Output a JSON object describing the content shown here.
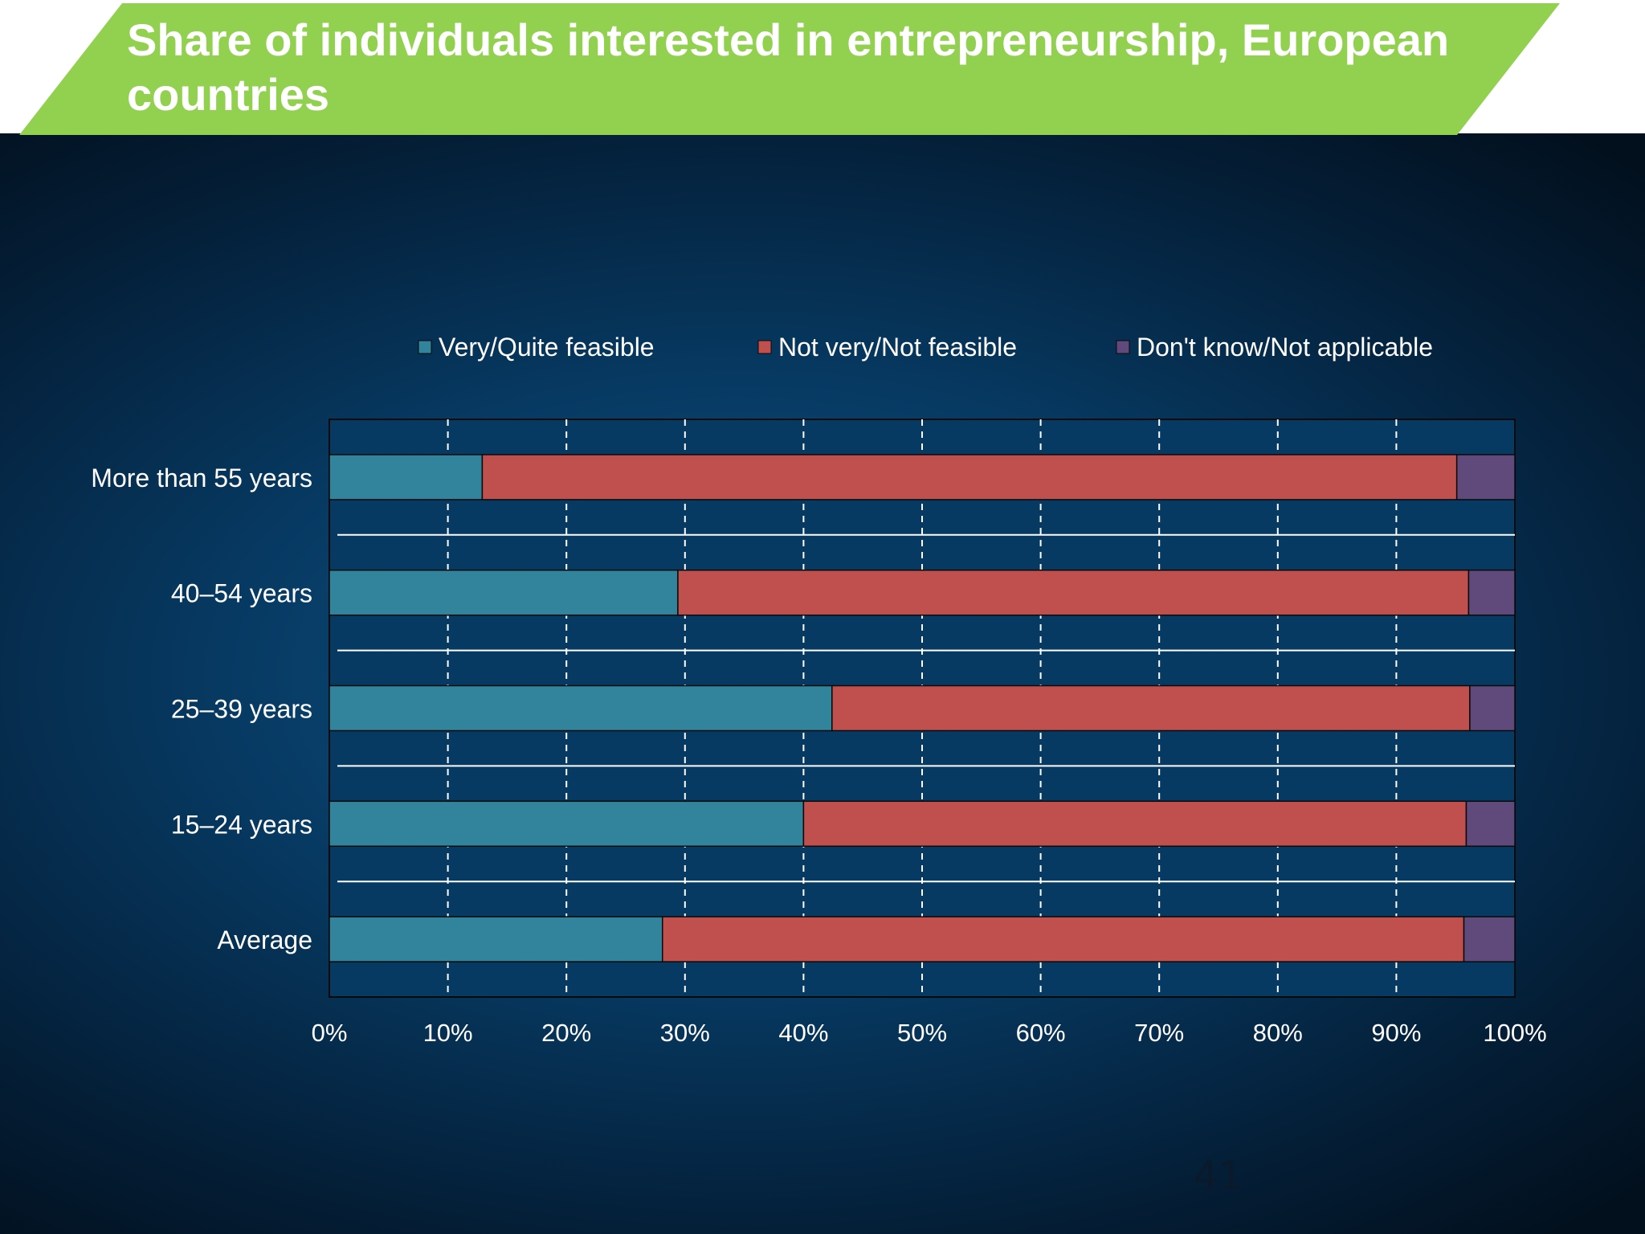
{
  "title": "Share of individuals interested in entrepreneurship, European countries",
  "page_number": "41",
  "colors": {
    "banner": "#92d050",
    "very_quite": "#31849b",
    "not_very": "#c0504d",
    "dont_know": "#604a7b",
    "plot_bg": "#063a63",
    "text": "#ffffff"
  },
  "chart_data": {
    "type": "bar",
    "orientation": "horizontal",
    "stacked": "100%",
    "categories": [
      "More than 55 years",
      "40–54 years",
      "25–39 years",
      "15–24 years",
      "Average"
    ],
    "series": [
      {
        "name": "Very/Quite feasible",
        "color": "#31849b",
        "values": [
          12.9,
          29.4,
          42.4,
          40.0,
          28.1
        ]
      },
      {
        "name": "Not very/Not feasible",
        "color": "#c0504d",
        "values": [
          82.2,
          66.7,
          53.8,
          55.9,
          67.6
        ]
      },
      {
        "name": "Don't know/Not applicable",
        "color": "#604a7b",
        "values": [
          4.9,
          3.9,
          3.8,
          4.1,
          4.3
        ]
      }
    ],
    "xlim": [
      0,
      100
    ],
    "xticks": [
      "0%",
      "10%",
      "20%",
      "30%",
      "40%",
      "50%",
      "60%",
      "70%",
      "80%",
      "90%",
      "100%"
    ],
    "grid": "vertical dashed",
    "legend": "top"
  }
}
